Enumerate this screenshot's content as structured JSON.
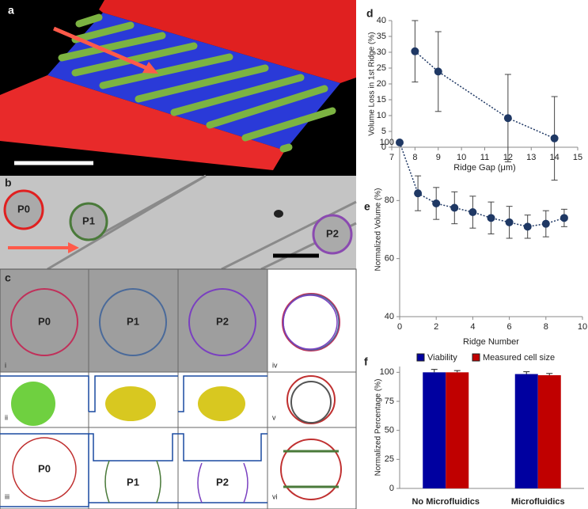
{
  "figure": {
    "a": {
      "label": "a"
    },
    "b": {
      "label": "b",
      "cells": [
        "P0",
        "P1",
        "P2"
      ]
    },
    "c": {
      "label": "c",
      "cells": [
        "P0",
        "P1",
        "P2",
        "P0",
        "P1",
        "P2"
      ],
      "rows": [
        "i",
        "ii",
        "iii",
        "iv",
        "v",
        "vi"
      ]
    }
  },
  "chart_data": [
    {
      "type": "line",
      "panel": "d",
      "x": [
        8,
        9,
        12,
        14
      ],
      "values": [
        30.3,
        23.9,
        9.2,
        2.8
      ],
      "errors": [
        9.7,
        12.6,
        13.8,
        13.2
      ],
      "color": "#1f3864",
      "xlim": [
        7,
        15
      ],
      "xticks": [
        7,
        8,
        9,
        10,
        11,
        12,
        13,
        14,
        15
      ],
      "ylim": [
        0,
        40
      ],
      "yticks": [
        0,
        5,
        10,
        15,
        20,
        25,
        30,
        35,
        40
      ],
      "xlabel": "Ridge Gap (μm)",
      "ylabel": "Volume Loss in 1st Ridge (%)"
    },
    {
      "type": "line",
      "panel": "e",
      "x": [
        0,
        1,
        2,
        3,
        4,
        5,
        6,
        7,
        8,
        9
      ],
      "values": [
        100,
        82.5,
        79,
        77.5,
        76,
        74,
        72.5,
        71,
        72,
        74
      ],
      "errors": [
        0,
        6,
        5.5,
        5.5,
        5.5,
        5.5,
        5.5,
        4,
        4.5,
        3
      ],
      "color": "#1f3864",
      "xlim": [
        0,
        10
      ],
      "xticks": [
        0,
        2,
        4,
        6,
        8,
        10
      ],
      "ylim": [
        40,
        100
      ],
      "yticks": [
        40,
        60,
        80,
        100
      ],
      "xlabel": "Ridge Number",
      "ylabel": "Normalized Volume (%)"
    },
    {
      "type": "bar",
      "panel": "f",
      "categories": [
        "No Microfluidics",
        "Microfluidics"
      ],
      "series": [
        {
          "name": "Viability",
          "color": "#0000a0",
          "values": [
            100,
            98.5
          ],
          "errors": [
            2.5,
            2
          ]
        },
        {
          "name": "Measured cell size",
          "color": "#c00000",
          "values": [
            100,
            97.5
          ],
          "errors": [
            1.5,
            1.5
          ]
        }
      ],
      "ylim": [
        0,
        105
      ],
      "yticks": [
        0,
        25,
        50,
        75,
        100
      ],
      "ylabel": "Normalized Percentage (%)"
    }
  ]
}
